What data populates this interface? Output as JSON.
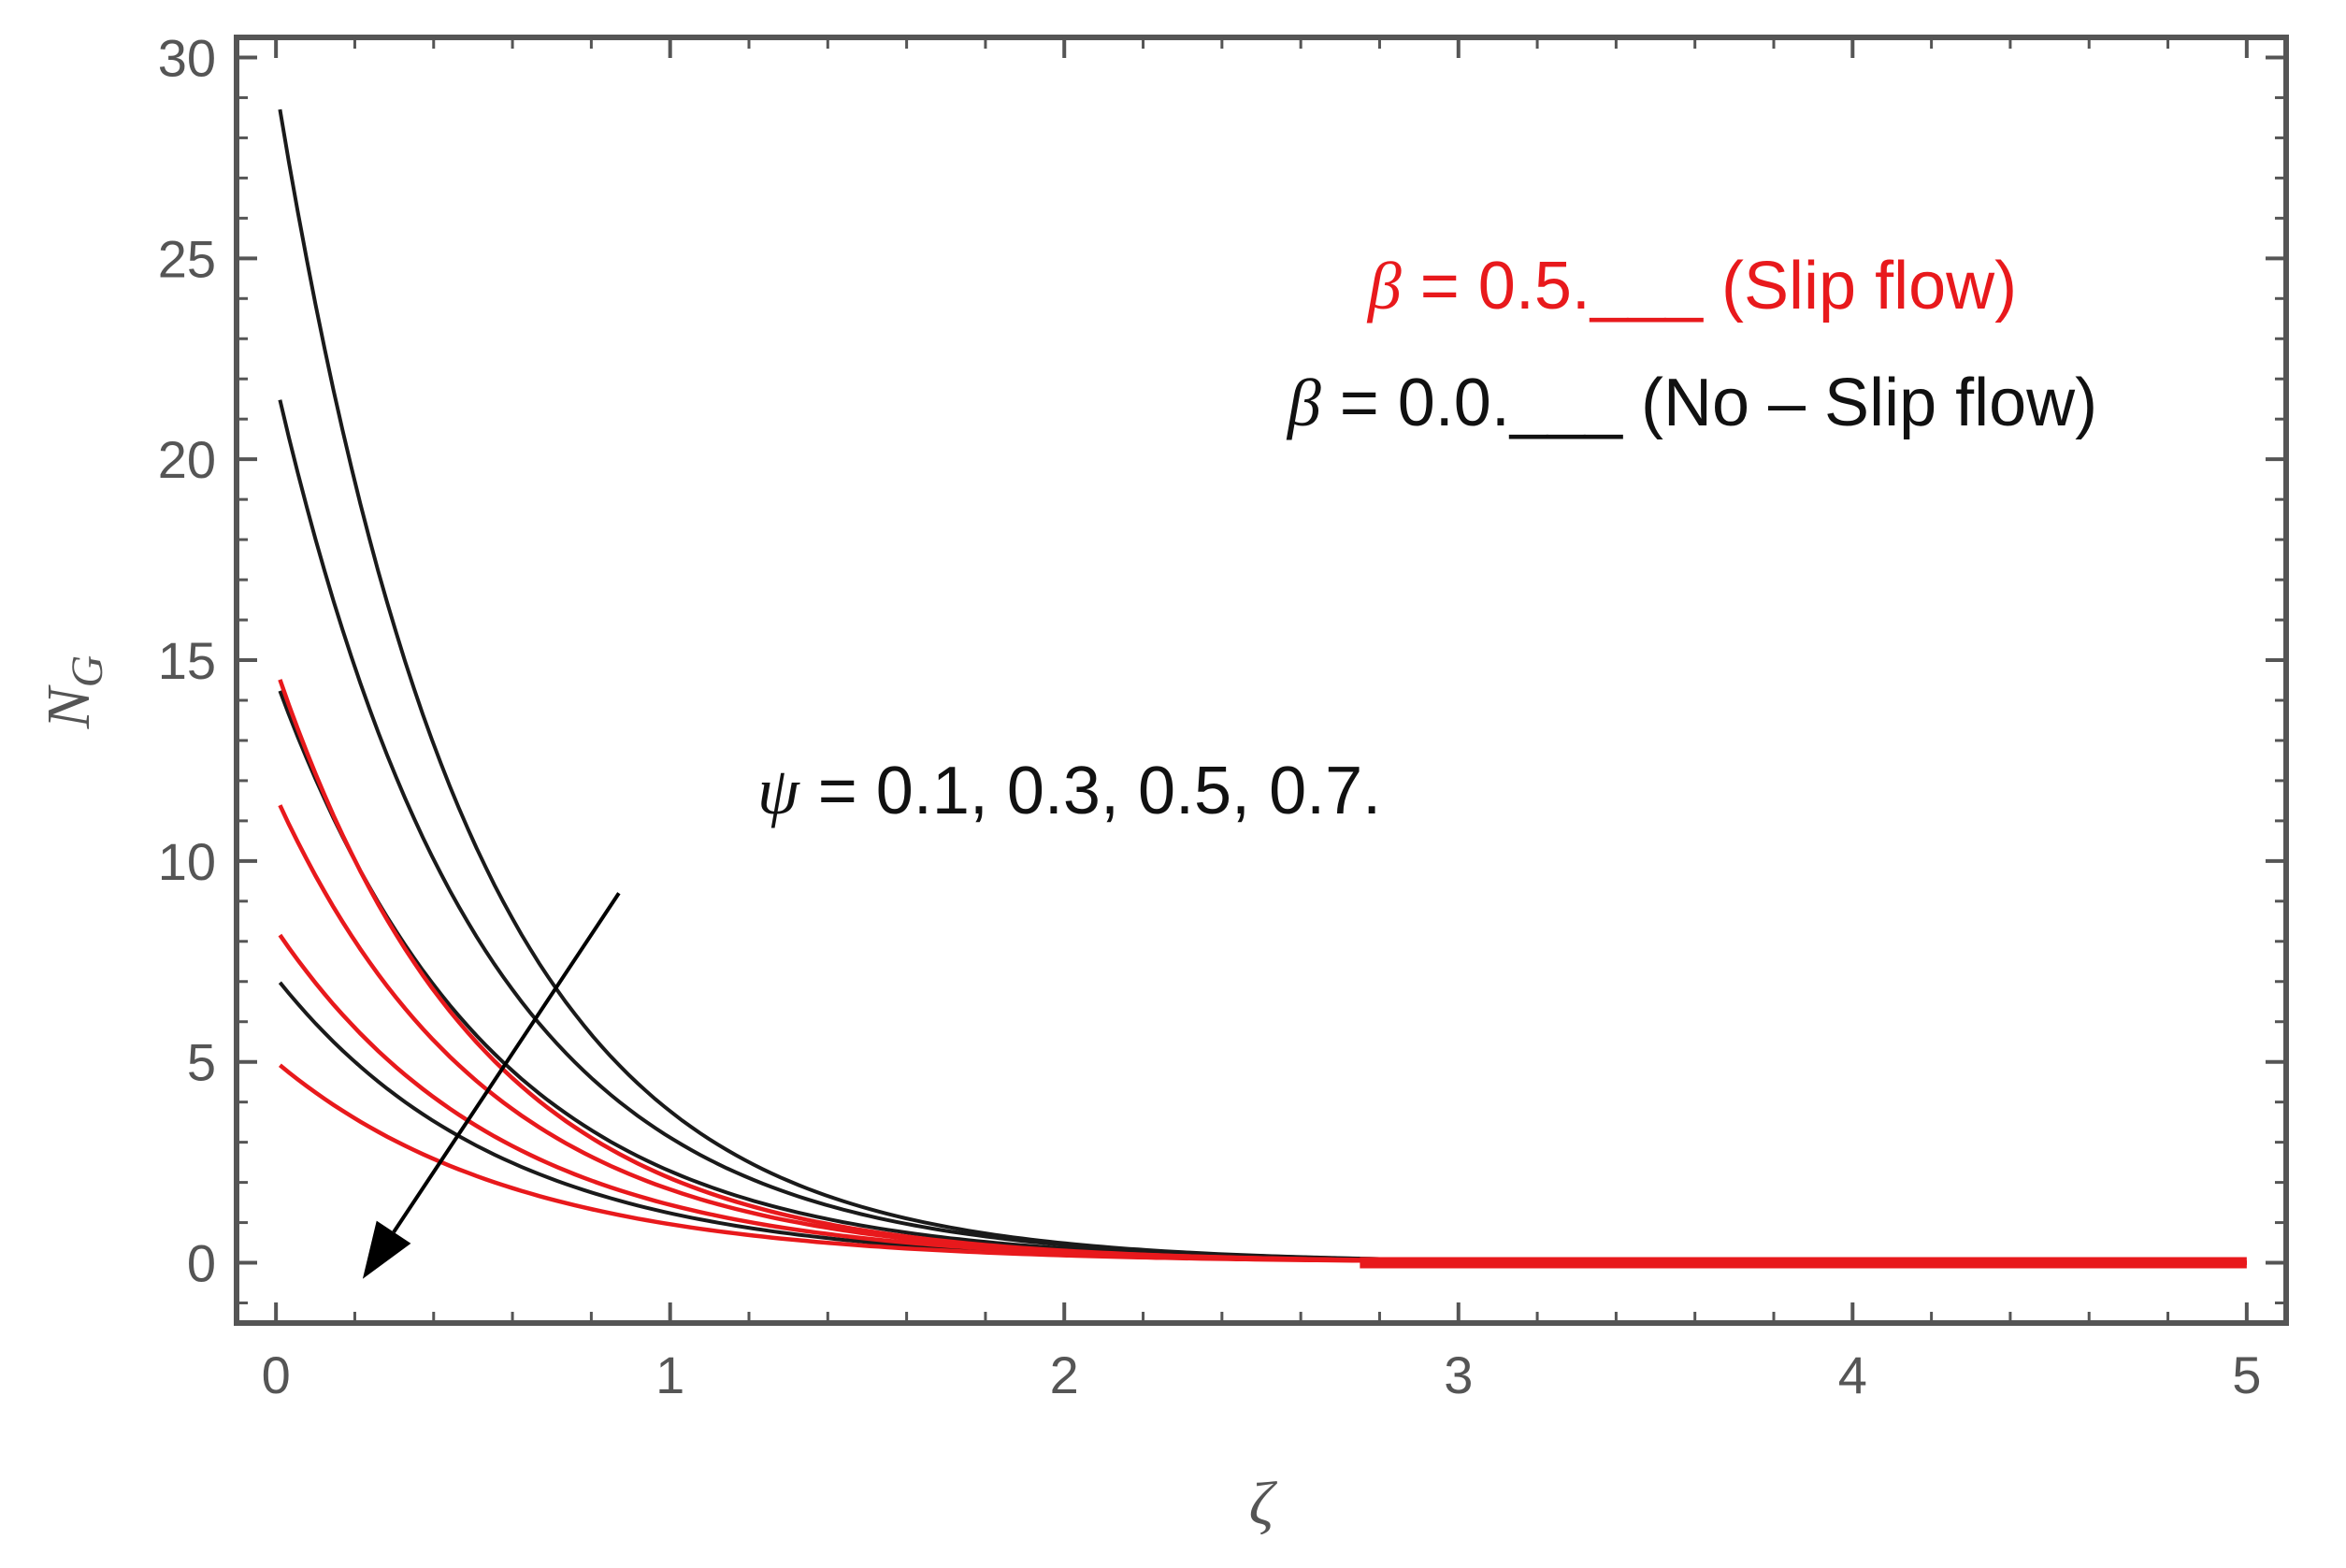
{
  "chart_data": {
    "type": "line",
    "title": "",
    "xlabel": "ζ",
    "ylabel_symbol": "N",
    "ylabel_subscript": "G",
    "xlim": [
      -0.1,
      5.1
    ],
    "ylim": [
      -1.5,
      30.5
    ],
    "x_ticks": [
      0,
      1,
      2,
      3,
      4,
      5
    ],
    "y_ticks": [
      0,
      5,
      10,
      15,
      20,
      25,
      30
    ],
    "x_tick_labels": [
      "0",
      "1",
      "2",
      "3",
      "4",
      "5"
    ],
    "y_tick_labels": [
      "0",
      "5",
      "10",
      "15",
      "20",
      "25",
      "30"
    ],
    "grid": false,
    "annotations": {
      "slip": {
        "symbol": "β",
        "text": " = 0.5.___ (Slip flow)",
        "color": "#e8191c"
      },
      "noslip": {
        "symbol": "β",
        "text": " = 0.0.___ (No – Slip flow)",
        "color": "#111111"
      },
      "psi": {
        "symbol": "ψ",
        "text": " = 0.1, 0.3, 0.5, 0.7."
      }
    },
    "arrow": {
      "from": [
        0.87,
        9.2
      ],
      "to": [
        0.22,
        -0.4
      ],
      "color": "#000000"
    },
    "series": [
      {
        "group": "black",
        "color": "#1a1a1a",
        "x0": 1.0,
        "y0": 29.3,
        "decay": 2.05
      },
      {
        "group": "black",
        "color": "#1a1a1a",
        "x0": 1.0,
        "y0": 21.9,
        "decay": 1.95
      },
      {
        "group": "black",
        "color": "#1a1a1a",
        "x0": 1.0,
        "y0": 14.5,
        "decay": 1.85
      },
      {
        "group": "black",
        "color": "#1a1a1a",
        "x0": 1.0,
        "y0": 7.1,
        "decay": 1.75
      },
      {
        "group": "red",
        "color": "#e8191c",
        "x0": 1.0,
        "y0": 14.8,
        "decay": 1.95
      },
      {
        "group": "red",
        "color": "#e8191c",
        "x0": 1.0,
        "y0": 11.6,
        "decay": 1.85
      },
      {
        "group": "red",
        "color": "#e8191c",
        "x0": 1.0,
        "y0": 8.3,
        "decay": 1.75
      },
      {
        "group": "red",
        "color": "#e8191c",
        "x0": 1.0,
        "y0": 5.0,
        "decay": 1.65
      }
    ]
  }
}
